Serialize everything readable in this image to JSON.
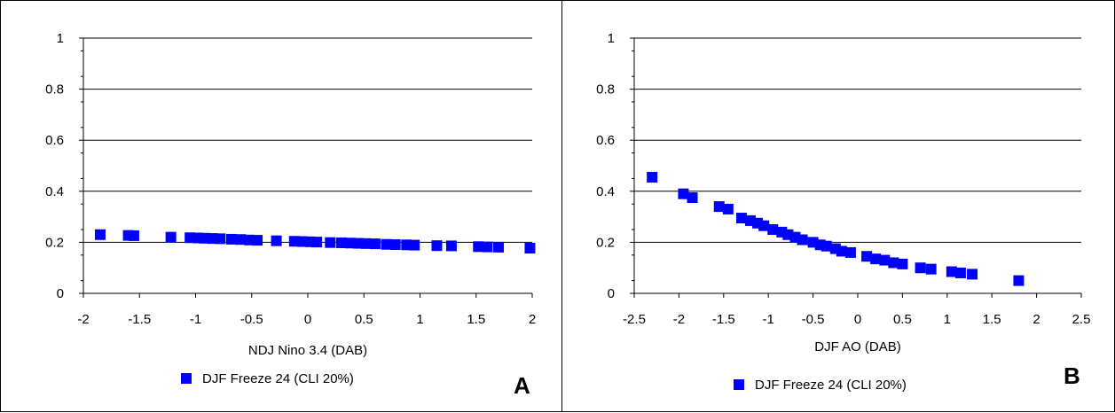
{
  "chart_data": [
    {
      "type": "scatter",
      "panel_label": "A",
      "xlabel": "NDJ Nino 3.4  (DAB)",
      "ylabel": "",
      "xlim": [
        -2,
        2
      ],
      "ylim": [
        0,
        1
      ],
      "xticks": [
        "-2",
        "-1.5",
        "-1",
        "-0.5",
        "0",
        "0.5",
        "1",
        "1.5",
        "2"
      ],
      "yticks": [
        "0",
        "0.2",
        "0.4",
        "0.6",
        "0.8",
        "1"
      ],
      "grid": "horizontal",
      "legend_position": "bottom",
      "marker_color": "#0000ff",
      "series": [
        {
          "name": "DJF Freeze 24 (CLI 20%)",
          "points": [
            [
              -1.85,
              0.23
            ],
            [
              -1.6,
              0.227
            ],
            [
              -1.55,
              0.226
            ],
            [
              -1.22,
              0.22
            ],
            [
              -1.05,
              0.218
            ],
            [
              -0.98,
              0.217
            ],
            [
              -0.92,
              0.216
            ],
            [
              -0.85,
              0.215
            ],
            [
              -0.78,
              0.214
            ],
            [
              -0.68,
              0.212
            ],
            [
              -0.6,
              0.211
            ],
            [
              -0.52,
              0.209
            ],
            [
              -0.45,
              0.208
            ],
            [
              -0.28,
              0.206
            ],
            [
              -0.12,
              0.204
            ],
            [
              -0.05,
              0.203
            ],
            [
              0.02,
              0.202
            ],
            [
              0.08,
              0.201
            ],
            [
              0.2,
              0.199
            ],
            [
              0.3,
              0.198
            ],
            [
              0.38,
              0.197
            ],
            [
              0.45,
              0.196
            ],
            [
              0.52,
              0.195
            ],
            [
              0.6,
              0.194
            ],
            [
              0.7,
              0.192
            ],
            [
              0.78,
              0.191
            ],
            [
              0.88,
              0.19
            ],
            [
              0.95,
              0.189
            ],
            [
              1.15,
              0.187
            ],
            [
              1.28,
              0.186
            ],
            [
              1.52,
              0.183
            ],
            [
              1.6,
              0.182
            ],
            [
              1.7,
              0.181
            ],
            [
              1.98,
              0.177
            ]
          ]
        }
      ]
    },
    {
      "type": "scatter",
      "panel_label": "B",
      "xlabel": "DJF  AO  (DAB)",
      "ylabel": "",
      "xlim": [
        -2.5,
        2.5
      ],
      "ylim": [
        0,
        1
      ],
      "xticks": [
        "-2.5",
        "-2",
        "-1.5",
        "-1",
        "-0.5",
        "0",
        "0.5",
        "1",
        "1.5",
        "2",
        "2.5"
      ],
      "yticks": [
        "0",
        "0.2",
        "0.4",
        "0.6",
        "0.8",
        "1"
      ],
      "grid": "horizontal",
      "legend_position": "bottom",
      "marker_color": "#0000ff",
      "series": [
        {
          "name": "DJF Freeze 24 (CLI 20%)",
          "points": [
            [
              -2.3,
              0.455
            ],
            [
              -1.95,
              0.39
            ],
            [
              -1.85,
              0.375
            ],
            [
              -1.55,
              0.34
            ],
            [
              -1.45,
              0.33
            ],
            [
              -1.3,
              0.295
            ],
            [
              -1.2,
              0.285
            ],
            [
              -1.12,
              0.275
            ],
            [
              -1.05,
              0.265
            ],
            [
              -0.95,
              0.25
            ],
            [
              -0.85,
              0.24
            ],
            [
              -0.78,
              0.23
            ],
            [
              -0.7,
              0.22
            ],
            [
              -0.62,
              0.21
            ],
            [
              -0.5,
              0.2
            ],
            [
              -0.42,
              0.19
            ],
            [
              -0.35,
              0.185
            ],
            [
              -0.25,
              0.175
            ],
            [
              -0.18,
              0.165
            ],
            [
              -0.08,
              0.16
            ],
            [
              0.1,
              0.145
            ],
            [
              0.2,
              0.135
            ],
            [
              0.3,
              0.13
            ],
            [
              0.4,
              0.12
            ],
            [
              0.5,
              0.115
            ],
            [
              0.7,
              0.1
            ],
            [
              0.82,
              0.095
            ],
            [
              1.05,
              0.085
            ],
            [
              1.15,
              0.08
            ],
            [
              1.28,
              0.075
            ],
            [
              1.8,
              0.05
            ]
          ]
        }
      ]
    }
  ]
}
